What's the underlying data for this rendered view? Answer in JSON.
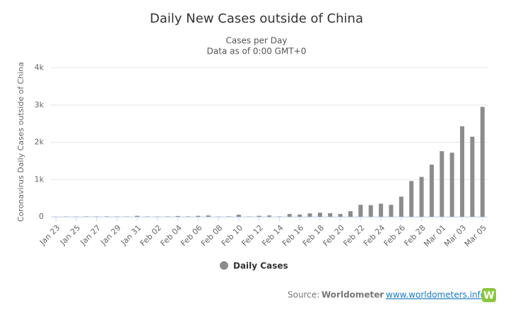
{
  "chart_data": {
    "type": "bar",
    "title": "Daily New Cases outside of China",
    "subtitle": [
      "Cases per Day",
      "Data as of 0:00 GMT+0"
    ],
    "y_label": "Coronavirus Daily Cases outside of China",
    "categories": [
      "Jan 23",
      null,
      "Jan 25",
      null,
      "Jan 27",
      null,
      "Jan 29",
      null,
      "Jan 31",
      null,
      "Feb 02",
      null,
      "Feb 04",
      null,
      "Feb 06",
      null,
      "Feb 08",
      null,
      "Feb 10",
      null,
      "Feb 12",
      null,
      "Feb 14",
      null,
      "Feb 16",
      null,
      "Feb 18",
      null,
      "Feb 20",
      null,
      "Feb 22",
      null,
      "Feb 24",
      null,
      "Feb 26",
      null,
      "Feb 28",
      null,
      "Mar 01",
      null,
      "Mar 03",
      null,
      "Mar 05"
    ],
    "series": [
      {
        "name": "Daily Cases",
        "color": "#8c8c8c",
        "values": [
          3,
          5,
          5,
          8,
          8,
          10,
          8,
          5,
          25,
          8,
          5,
          8,
          20,
          10,
          25,
          35,
          5,
          10,
          55,
          5,
          25,
          35,
          8,
          75,
          60,
          90,
          110,
          95,
          75,
          150,
          320,
          310,
          350,
          320,
          540,
          960,
          1070,
          1400,
          1760,
          1720,
          2430,
          2150,
          2950
        ]
      }
    ],
    "ylim": [
      0,
      4000
    ],
    "yticks": [
      0,
      {
        "value": 1000,
        "label": "1k"
      },
      {
        "value": 2000,
        "label": "2k"
      },
      {
        "value": 3000,
        "label": "3k"
      },
      {
        "value": 4000,
        "label": "4k"
      }
    ],
    "grid": true,
    "legend": "bottom",
    "source": {
      "label": "Source:",
      "name": "Worldometer",
      "separator": "-",
      "url": "www.worldometers.info",
      "logo": "W"
    }
  }
}
